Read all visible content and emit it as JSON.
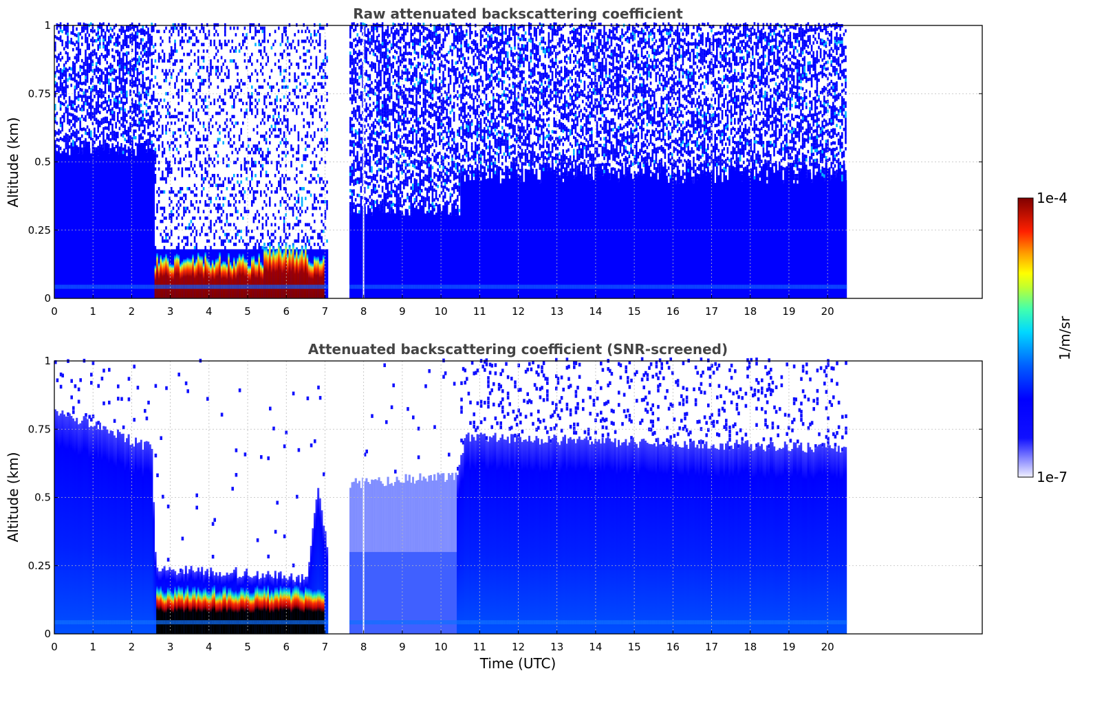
{
  "chart_data": [
    {
      "type": "heatmap",
      "title": "Raw attenuated backscattering coefficient",
      "xlabel": "",
      "ylabel": "Altitude (km)",
      "xlim": [
        0,
        24
      ],
      "ylim": [
        0,
        1
      ],
      "x_ticks": [
        "0",
        "1",
        "2",
        "3",
        "4",
        "5",
        "6",
        "7",
        "8",
        "9",
        "10",
        "11",
        "12",
        "13",
        "14",
        "15",
        "16",
        "17",
        "18",
        "19",
        "20"
      ],
      "y_ticks": [
        "0",
        "0.25",
        "0.5",
        "0.75",
        "1"
      ],
      "grid": true,
      "data_end_time": 20.45,
      "gap": [
        7.05,
        7.6
      ],
      "regions": [
        {
          "t": [
            0,
            2.55
          ],
          "description": "blue aerosol layer up to ~0.55 km, noise above"
        },
        {
          "t": [
            2.55,
            7.05
          ],
          "description": "strong low layer ~0.02-0.18 km (red/dark red), noise above"
        },
        {
          "t": [
            7.6,
            10.5
          ],
          "description": "blue aerosol up to ~0.3 km, noise above"
        },
        {
          "t": [
            10.5,
            20.45
          ],
          "description": "blue aerosol up to ~0.45 km, noise above"
        }
      ]
    },
    {
      "type": "heatmap",
      "title": "Attenuated backscattering coefficient (SNR-screened)",
      "xlabel": "Time (UTC)",
      "ylabel": "Altitude (km)",
      "xlim": [
        0,
        24
      ],
      "ylim": [
        0,
        1
      ],
      "x_ticks": [
        "0",
        "1",
        "2",
        "3",
        "4",
        "5",
        "6",
        "7",
        "8",
        "9",
        "10",
        "11",
        "12",
        "13",
        "14",
        "15",
        "16",
        "17",
        "18",
        "19",
        "20"
      ],
      "y_ticks": [
        "0",
        "0.25",
        "0.5",
        "0.75",
        "1"
      ],
      "grid": true,
      "data_end_time": 20.45,
      "gap": [
        7.05,
        7.6
      ],
      "layer_tops_km": [
        {
          "t": 0.0,
          "top": 0.82
        },
        {
          "t": 2.5,
          "top": 0.68
        },
        {
          "t": 2.6,
          "top": 0.24
        },
        {
          "t": 5.3,
          "top": 0.22
        },
        {
          "t": 6.5,
          "top": 0.2
        },
        {
          "t": 6.8,
          "top": 0.55
        },
        {
          "t": 7.05,
          "top": 0.3
        },
        {
          "t": 7.6,
          "top": 0.55
        },
        {
          "t": 10.4,
          "top": 0.58
        },
        {
          "t": 10.6,
          "top": 0.72
        },
        {
          "t": 20.45,
          "top": 0.68
        }
      ]
    }
  ],
  "colorbar": {
    "label": "1/m/sr",
    "max_label": "1e-4",
    "min_label": "1e-7",
    "colors": [
      "#e8e8ff",
      "#c8c8ff",
      "#a0a0ff",
      "#7070ff",
      "#3030ff",
      "#0000ff",
      "#0040ff",
      "#0080ff",
      "#00b0ff",
      "#00e0f0",
      "#20ffc0",
      "#60ff80",
      "#a0ff40",
      "#e0ff10",
      "#ffe000",
      "#ffb000",
      "#ff8000",
      "#ff4000",
      "#ee0000",
      "#c00000",
      "#800000"
    ]
  }
}
